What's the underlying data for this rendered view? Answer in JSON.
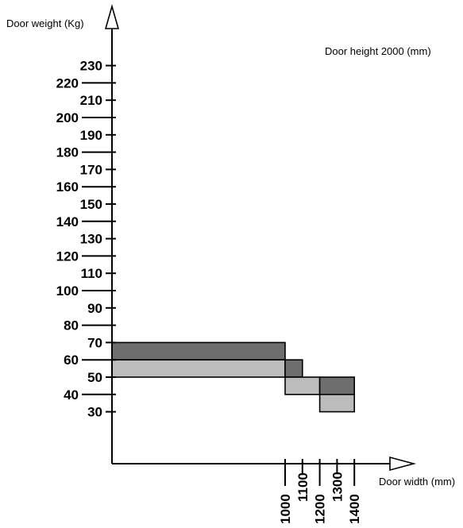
{
  "chart_data": {
    "type": "area",
    "title": "",
    "annotation": "Door height 2000 (mm)",
    "xlabel": "Door width (mm)",
    "ylabel": "Door weight (Kg)",
    "x_ticks": [
      1000,
      1100,
      1200,
      1300,
      1400
    ],
    "y_ticks": [
      30,
      40,
      50,
      60,
      70,
      80,
      90,
      100,
      110,
      120,
      130,
      140,
      150,
      160,
      170,
      180,
      190,
      200,
      210,
      220,
      230
    ],
    "ylim": [
      10,
      240
    ],
    "grid": false,
    "regions": [
      {
        "x": [
          0,
          1000
        ],
        "y": [
          60,
          70
        ],
        "color": "#6e6e6e"
      },
      {
        "x": [
          0,
          1000
        ],
        "y": [
          50,
          60
        ],
        "color": "#bcbcbc"
      },
      {
        "x": [
          1000,
          1100
        ],
        "y": [
          50,
          60
        ],
        "color": "#6e6e6e"
      },
      {
        "x": [
          1000,
          1200
        ],
        "y": [
          40,
          50
        ],
        "color": "#bcbcbc"
      },
      {
        "x": [
          1200,
          1400
        ],
        "y": [
          40,
          50
        ],
        "color": "#6e6e6e"
      },
      {
        "x": [
          1200,
          1400
        ],
        "y": [
          30,
          40
        ],
        "color": "#bcbcbc"
      }
    ],
    "colors": {
      "dark": "#6e6e6e",
      "light": "#bcbcbc",
      "axis": "#000000"
    }
  }
}
